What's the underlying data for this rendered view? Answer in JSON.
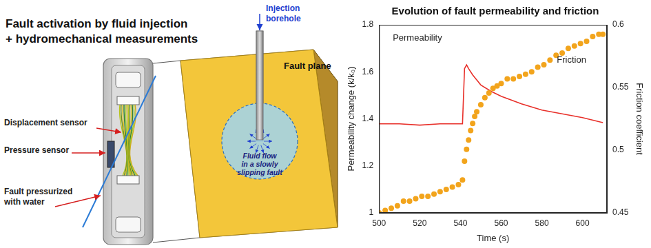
{
  "diagram": {
    "title": [
      "Fault activation by fluid injection",
      "+ hydromechanical measurements"
    ],
    "labels": {
      "displacement_sensor": "Displacement sensor",
      "pressure_sensor": "Pressure sensor",
      "fault_water": [
        "Fault pressurized",
        "with water"
      ],
      "injection_borehole": [
        "Injection",
        "borehole"
      ],
      "fault_plane": "Fault plane",
      "fluid_flow": [
        "Fluid flow",
        "in a slowly",
        "slipping fault"
      ]
    }
  },
  "chart_data": {
    "type": "line",
    "title": "Evolution of fault permeability and friction",
    "x_label": "Time (s)",
    "y_label": "Permeability change (k/k₀)",
    "y2_label": "Friction coefficient",
    "xlim": [
      500,
      612
    ],
    "xticks": [
      500,
      520,
      540,
      560,
      580,
      600
    ],
    "ylim": [
      1,
      1.8
    ],
    "yticks": [
      1,
      1.2,
      1.4,
      1.6,
      1.8
    ],
    "y2lim": [
      0.45,
      0.6
    ],
    "y2ticks": [
      0.45,
      0.5,
      0.55,
      0.6
    ],
    "grid": false,
    "series": [
      {
        "name": "Permeability",
        "color": "#f2a41c",
        "marker": "circle",
        "line_style": "none",
        "axis": "y",
        "x": [
          500,
          503,
          506,
          509,
          512,
          515,
          518,
          521,
          524,
          527,
          530,
          533,
          536,
          539,
          541,
          542,
          543,
          544,
          545,
          546,
          547,
          548,
          550,
          552,
          554,
          556,
          558,
          560,
          563,
          566,
          569,
          572,
          575,
          578,
          581,
          584,
          587,
          590,
          593,
          596,
          599,
          602,
          605,
          608,
          610
        ],
        "values": [
          1.0,
          1.01,
          1.02,
          1.03,
          1.05,
          1.05,
          1.06,
          1.07,
          1.07,
          1.08,
          1.09,
          1.1,
          1.11,
          1.12,
          1.14,
          1.22,
          1.27,
          1.31,
          1.35,
          1.38,
          1.41,
          1.43,
          1.46,
          1.49,
          1.51,
          1.53,
          1.54,
          1.55,
          1.57,
          1.57,
          1.58,
          1.59,
          1.6,
          1.62,
          1.63,
          1.65,
          1.67,
          1.68,
          1.7,
          1.71,
          1.72,
          1.73,
          1.75,
          1.76,
          1.76
        ]
      },
      {
        "name": "Friction",
        "color": "#e8302a",
        "marker": "none",
        "line_style": "solid",
        "axis": "y2",
        "x": [
          500,
          510,
          520,
          530,
          540,
          541,
          542,
          543,
          544,
          546,
          548,
          550,
          555,
          560,
          565,
          570,
          580,
          590,
          600,
          610
        ],
        "values": [
          0.521,
          0.521,
          0.52,
          0.521,
          0.521,
          0.521,
          0.565,
          0.568,
          0.565,
          0.56,
          0.556,
          0.552,
          0.547,
          0.543,
          0.54,
          0.537,
          0.532,
          0.529,
          0.526,
          0.522
        ]
      }
    ]
  }
}
